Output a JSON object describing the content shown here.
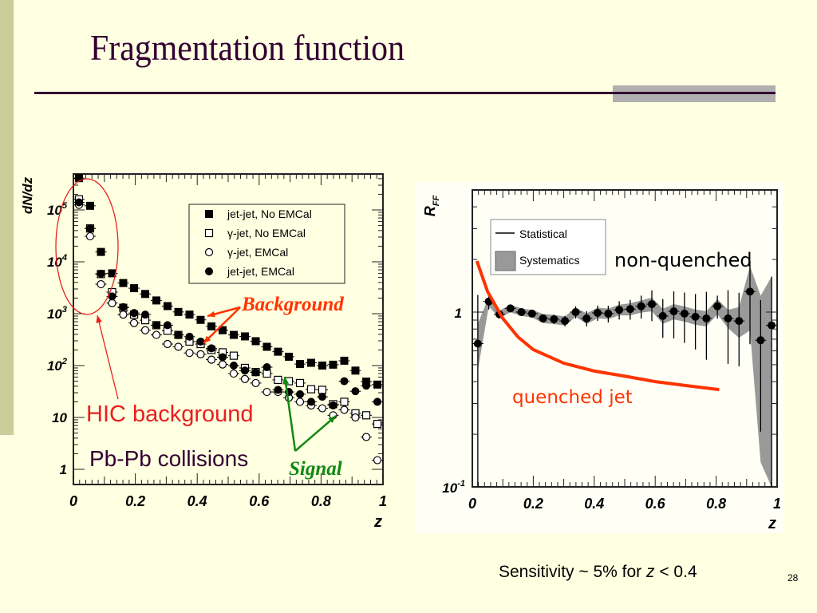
{
  "slide": {
    "title": "Fragmentation function",
    "footer_text_prefix": "Sensitivity ~ 5% for ",
    "footer_var": "z",
    "footer_text_suffix": " < 0.4",
    "page_number": "28"
  },
  "annotations": {
    "hic_background": "HIC background",
    "pbpb": "Pb-Pb collisions",
    "background": "Background",
    "signal": "Signal",
    "non_quenched": "non-quenched",
    "quenched_jet": "quenched jet"
  },
  "colors": {
    "title": "#330033",
    "red": "#FF3300",
    "hic_red": "#E8201E",
    "green": "#118811",
    "systematics": "#999999"
  },
  "chart_data": [
    {
      "type": "scatter",
      "title": "",
      "xlabel": "z",
      "ylabel": "dN/dz",
      "yscale": "log",
      "xlim": [
        0,
        1
      ],
      "ylim": [
        0.5,
        400000
      ],
      "x_ticks": [
        "0",
        "0.2",
        "0.4",
        "0.6",
        "0.8",
        "1"
      ],
      "y_ticks": [
        {
          "base": "1",
          "exp": ""
        },
        {
          "base": "10",
          "exp": ""
        },
        {
          "base": "10",
          "exp": "2"
        },
        {
          "base": "10",
          "exp": "3"
        },
        {
          "base": "10",
          "exp": "4"
        },
        {
          "base": "10",
          "exp": "5"
        }
      ],
      "legend_position": "top-right",
      "x": [
        0.018,
        0.054,
        0.089,
        0.125,
        0.161,
        0.196,
        0.232,
        0.268,
        0.304,
        0.339,
        0.375,
        0.411,
        0.446,
        0.482,
        0.518,
        0.554,
        0.589,
        0.625,
        0.661,
        0.696,
        0.732,
        0.768,
        0.804,
        0.839,
        0.875,
        0.911,
        0.946,
        0.982
      ],
      "series": [
        {
          "name": "jet-jet, No EMCal",
          "marker": "filled-square",
          "values": [
            410000,
            120000,
            15500,
            6000,
            3900,
            3100,
            2400,
            1800,
            1400,
            1080,
            960,
            760,
            570,
            480,
            390,
            365,
            295,
            230,
            185,
            148,
            107,
            113,
            100,
            104,
            124,
            80,
            49,
            43
          ]
        },
        {
          "name": "γ-jet, No EMCal",
          "marker": "open-square",
          "values": [
            160000,
            44000,
            5800,
            2600,
            1300,
            960,
            750,
            600,
            470,
            390,
            290,
            260,
            200,
            180,
            155,
            90,
            75,
            70,
            53,
            50,
            46,
            35,
            34,
            18,
            20,
            12,
            11,
            7.5
          ]
        },
        {
          "name": "γ-jet, EMCal",
          "marker": "open-circle",
          "values": [
            125000,
            31000,
            3700,
            1600,
            960,
            660,
            480,
            390,
            260,
            230,
            175,
            165,
            130,
            105,
            70,
            55,
            46,
            31,
            31,
            24,
            20,
            17,
            15,
            11,
            14,
            10,
            4.2,
            1.5
          ]
        },
        {
          "name": "jet-jet, EMCal",
          "marker": "filled-circle",
          "values": [
            140000,
            44000,
            5900,
            2150,
            1340,
            1030,
            960,
            600,
            600,
            390,
            360,
            290,
            215,
            145,
            100,
            80,
            74,
            93,
            34,
            31,
            28,
            20,
            25,
            17,
            50,
            32,
            41,
            20
          ]
        }
      ]
    },
    {
      "type": "scatter",
      "title": "",
      "xlabel": "z",
      "ylabel": "R_FF",
      "yscale": "log",
      "xlim": [
        0,
        1
      ],
      "ylim": [
        0.1,
        5
      ],
      "x_ticks": [
        "0",
        "0.2",
        "0.4",
        "0.6",
        "0.8",
        "1"
      ],
      "y_ticks": [
        {
          "base": "10",
          "exp": "-1"
        },
        {
          "base": "1",
          "exp": ""
        }
      ],
      "legend_position": "top-left",
      "legend": [
        "Statistical",
        "Systematics"
      ],
      "x": [
        0.018,
        0.054,
        0.089,
        0.125,
        0.161,
        0.196,
        0.232,
        0.268,
        0.304,
        0.339,
        0.375,
        0.411,
        0.446,
        0.482,
        0.518,
        0.554,
        0.589,
        0.625,
        0.661,
        0.696,
        0.732,
        0.768,
        0.804,
        0.839,
        0.875,
        0.911,
        0.946,
        0.982
      ],
      "values": [
        0.66,
        1.15,
        0.97,
        1.05,
        1.0,
        0.98,
        0.92,
        0.91,
        0.89,
        1.0,
        0.92,
        0.99,
        0.98,
        1.03,
        1.04,
        1.08,
        1.11,
        0.95,
        1.01,
        0.98,
        0.94,
        0.92,
        1.08,
        0.92,
        0.89,
        1.31,
        0.69,
        0.84
      ],
      "stat_err_rel": [
        0.9,
        0.1,
        0.05,
        0.04,
        0.04,
        0.05,
        0.05,
        0.06,
        0.07,
        0.08,
        0.1,
        0.1,
        0.11,
        0.12,
        0.13,
        0.15,
        0.2,
        0.25,
        0.3,
        0.32,
        0.35,
        0.42,
        0.15,
        0.45,
        0.45,
        0.5,
        0.7,
        0.9
      ],
      "sys_err_rel": [
        0.3,
        0.06,
        0.05,
        0.05,
        0.05,
        0.05,
        0.06,
        0.06,
        0.06,
        0.06,
        0.07,
        0.07,
        0.07,
        0.07,
        0.08,
        0.08,
        0.09,
        0.1,
        0.1,
        0.1,
        0.1,
        0.1,
        0.1,
        0.12,
        0.2,
        0.4,
        0.8,
        0.9
      ],
      "quenched_curve": {
        "z": [
          0.015,
          0.05,
          0.1,
          0.15,
          0.2,
          0.3,
          0.4,
          0.5,
          0.6,
          0.7,
          0.81
        ],
        "values": [
          1.96,
          1.31,
          0.92,
          0.72,
          0.61,
          0.51,
          0.46,
          0.43,
          0.4,
          0.38,
          0.36
        ]
      }
    }
  ]
}
